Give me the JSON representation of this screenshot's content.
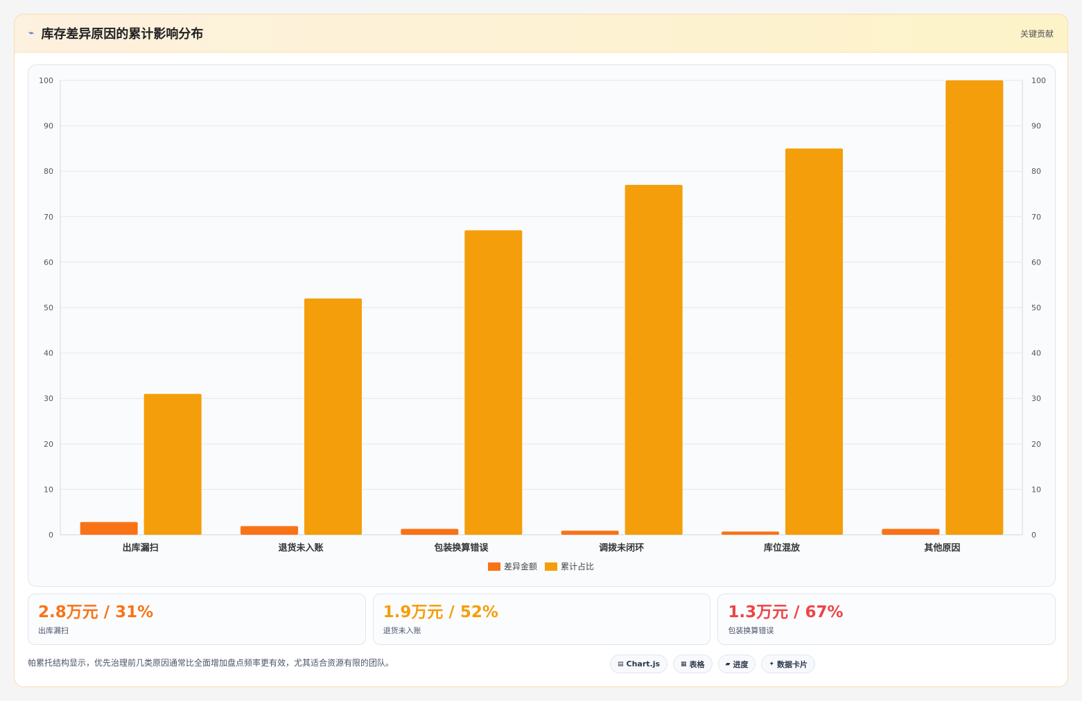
{
  "header": {
    "title": "库存差异原因的累计影响分布",
    "tag": "关键贡献"
  },
  "colors": {
    "amount": "#f97316",
    "cumulative": "#f59e0b"
  },
  "chart_data": {
    "type": "bar",
    "categories": [
      "出库漏扫",
      "退货未入账",
      "包装换算错误",
      "调拨未闭环",
      "库位混放",
      "其他原因"
    ],
    "series": [
      {
        "name": "差异金额",
        "values": [
          2.8,
          1.9,
          1.3,
          0.9,
          0.7,
          1.3
        ]
      },
      {
        "name": "累计占比",
        "values": [
          31,
          52,
          67,
          77,
          85,
          100
        ]
      }
    ],
    "ylim": [
      0,
      100
    ],
    "yticks": [
      0,
      10,
      20,
      30,
      40,
      50,
      60,
      70,
      80,
      90,
      100
    ],
    "y2lim": [
      0,
      100
    ],
    "grid": true,
    "legend": "bottom"
  },
  "stats": [
    {
      "value": "2.8万元 / 31%",
      "label": "出库漏扫",
      "color": "#f97316"
    },
    {
      "value": "1.9万元 / 52%",
      "label": "退货未入账",
      "color": "#f59e0b"
    },
    {
      "value": "1.3万元 / 67%",
      "label": "包装换算错误",
      "color": "#ef4444"
    }
  ],
  "footer": {
    "note": "帕累托结构显示，优先治理前几类原因通常比全面增加盘点频率更有效，尤其适合资源有限的团队。",
    "pills": [
      {
        "icon": "chart-icon",
        "label": "Chart.js"
      },
      {
        "icon": "table-icon",
        "label": "表格"
      },
      {
        "icon": "progress-icon",
        "label": "进度"
      },
      {
        "icon": "sparkle-icon",
        "label": "数据卡片"
      }
    ]
  }
}
